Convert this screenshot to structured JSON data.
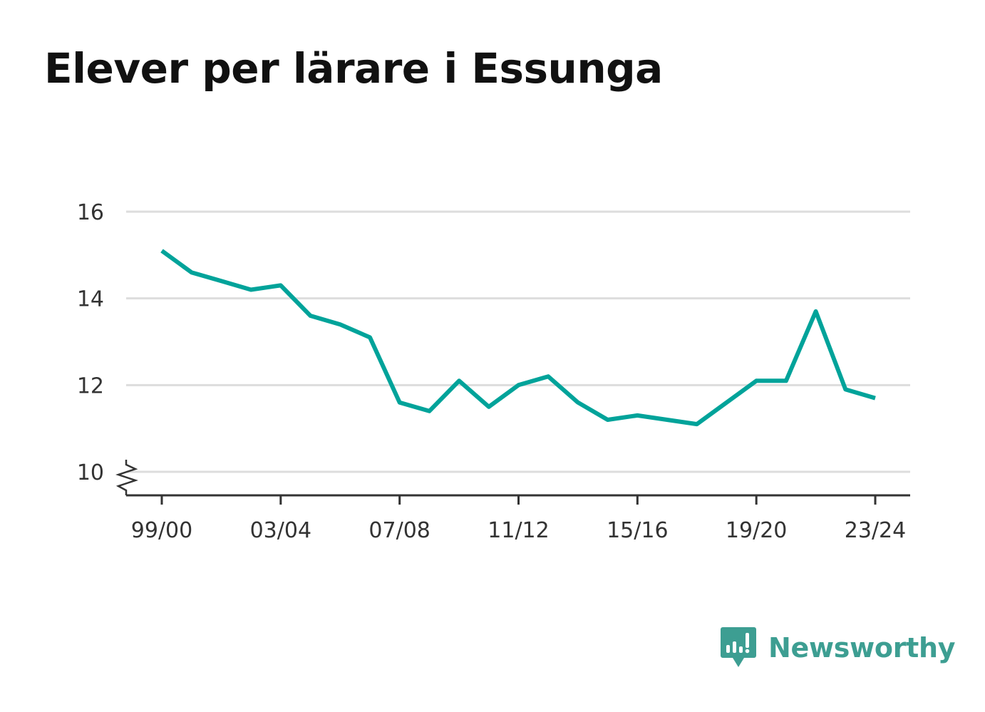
{
  "chart_data": {
    "type": "line",
    "title": "Elever per lärare i Essunga",
    "x": [
      "99/00",
      "00/01",
      "01/02",
      "02/03",
      "03/04",
      "04/05",
      "05/06",
      "06/07",
      "07/08",
      "08/09",
      "09/10",
      "10/11",
      "11/12",
      "12/13",
      "13/14",
      "14/15",
      "15/16",
      "16/17",
      "17/18",
      "18/19",
      "19/20",
      "20/21",
      "21/22",
      "22/23",
      "23/24"
    ],
    "x_tick_labels": [
      "99/00",
      "03/04",
      "07/08",
      "11/12",
      "15/16",
      "19/20",
      "23/24"
    ],
    "series": [
      {
        "values": [
          15.1,
          14.6,
          14.4,
          14.2,
          14.3,
          13.6,
          13.4,
          13.1,
          11.6,
          11.4,
          12.1,
          11.5,
          12.0,
          12.2,
          11.6,
          11.2,
          11.3,
          11.2,
          11.1,
          11.6,
          12.1,
          12.1,
          13.7,
          11.9,
          11.7
        ]
      }
    ],
    "y_ticks": [
      10,
      12,
      14,
      16
    ],
    "ylim": [
      9.5,
      16
    ],
    "y_axis_break": true,
    "grid": true,
    "colors": {
      "line": "#00a39a",
      "grid": "#dddddd",
      "axis": "#333333"
    }
  },
  "logo": {
    "text": "Newsworthy",
    "icon": "newsworthy-logo-icon",
    "color": "#3d9e92"
  }
}
